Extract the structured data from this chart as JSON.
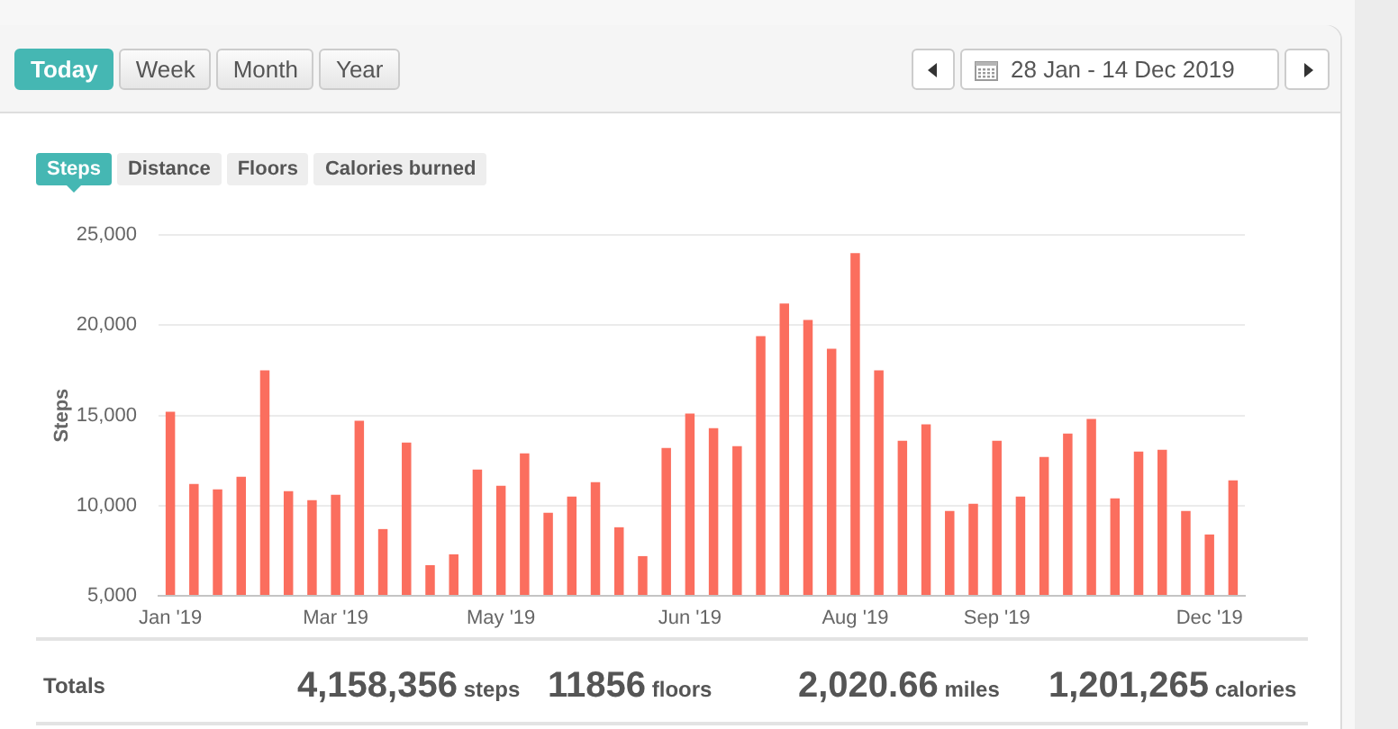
{
  "chart_data": [
    {
      "type": "other",
      "annotations": [
        "Today",
        "Week",
        "Month",
        "Year"
      ],
      "subtitle": "28 Jan - 14 Dec 2019"
    },
    {
      "type": "bar",
      "annotations": [
        "Steps",
        "Distance",
        "Floors",
        "Calories burned"
      ],
      "ylabel": "Steps",
      "categories": [
        "Jan '19",
        null,
        null,
        null,
        null,
        null,
        null,
        "Mar '19",
        null,
        null,
        null,
        null,
        null,
        null,
        "May '19",
        null,
        null,
        null,
        null,
        null,
        null,
        null,
        "Jun '19",
        null,
        null,
        null,
        null,
        null,
        null,
        "Aug '19",
        null,
        null,
        null,
        null,
        null,
        "Sep '19",
        null,
        null,
        null,
        null,
        null,
        null,
        null,
        null,
        "Dec '19",
        null
      ],
      "values": [
        15200,
        11200,
        10900,
        11600,
        17500,
        10800,
        10300,
        10600,
        14700,
        8700,
        13500,
        6700,
        7300,
        12000,
        11100,
        12900,
        9600,
        10500,
        11300,
        8800,
        7200,
        13200,
        15100,
        14300,
        13300,
        19400,
        21200,
        20300,
        18700,
        24000,
        17500,
        13600,
        14500,
        9700,
        10100,
        13600,
        10500,
        12700,
        14000,
        14800,
        10400,
        13000,
        13100,
        9700,
        8400,
        11400
      ],
      "color": "#fb6e5e",
      "ylim": [
        5000,
        25000
      ],
      "yticks": [
        {
          "value": 5000,
          "label": "5,000"
        },
        {
          "value": 10000,
          "label": "10,000"
        },
        {
          "value": 15000,
          "label": "15,000"
        },
        {
          "value": 20000,
          "label": "20,000"
        },
        {
          "value": 25000,
          "label": "25,000"
        }
      ],
      "grid": "y"
    },
    {
      "type": "other",
      "title": "Totals",
      "annotations": [
        "4,158,356 steps",
        "11856 floors",
        "2,020.66 miles",
        "1,201,265 calories"
      ]
    }
  ]
}
